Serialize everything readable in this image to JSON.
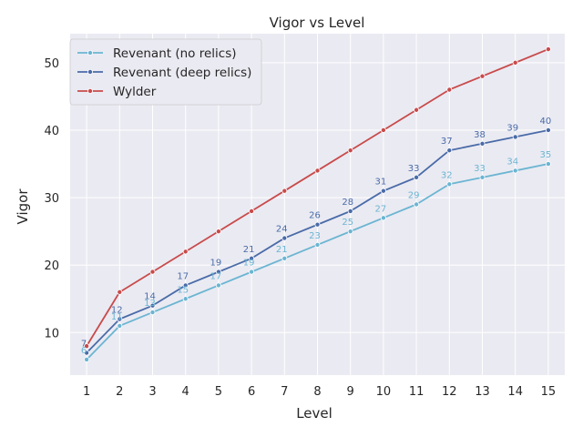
{
  "chart_data": {
    "type": "line",
    "title": "Vigor vs Level",
    "xlabel": "Level",
    "ylabel": "Vigor",
    "x": [
      1,
      2,
      3,
      4,
      5,
      6,
      7,
      8,
      9,
      10,
      11,
      12,
      13,
      14,
      15
    ],
    "xlim": [
      0.5,
      15.5
    ],
    "ylim": [
      3.7,
      54.3
    ],
    "yticks": [
      10,
      20,
      30,
      40,
      50
    ],
    "grid": true,
    "legend_position": "top-left",
    "series": [
      {
        "name": "Revenant (no relics)",
        "color": "#6bb5d2",
        "values": [
          6,
          11,
          13,
          15,
          17,
          19,
          21,
          23,
          25,
          27,
          29,
          32,
          33,
          34,
          35
        ],
        "labeled": true
      },
      {
        "name": "Revenant (deep relics)",
        "color": "#4a6ba8",
        "values": [
          7,
          12,
          14,
          17,
          19,
          21,
          24,
          26,
          28,
          31,
          33,
          37,
          38,
          39,
          40
        ],
        "labeled": true
      },
      {
        "name": "Wylder",
        "color": "#c84b4b",
        "values": [
          8,
          16,
          19,
          22,
          25,
          28,
          31,
          34,
          37,
          40,
          43,
          46,
          48,
          50,
          52
        ],
        "labeled": false
      }
    ]
  }
}
